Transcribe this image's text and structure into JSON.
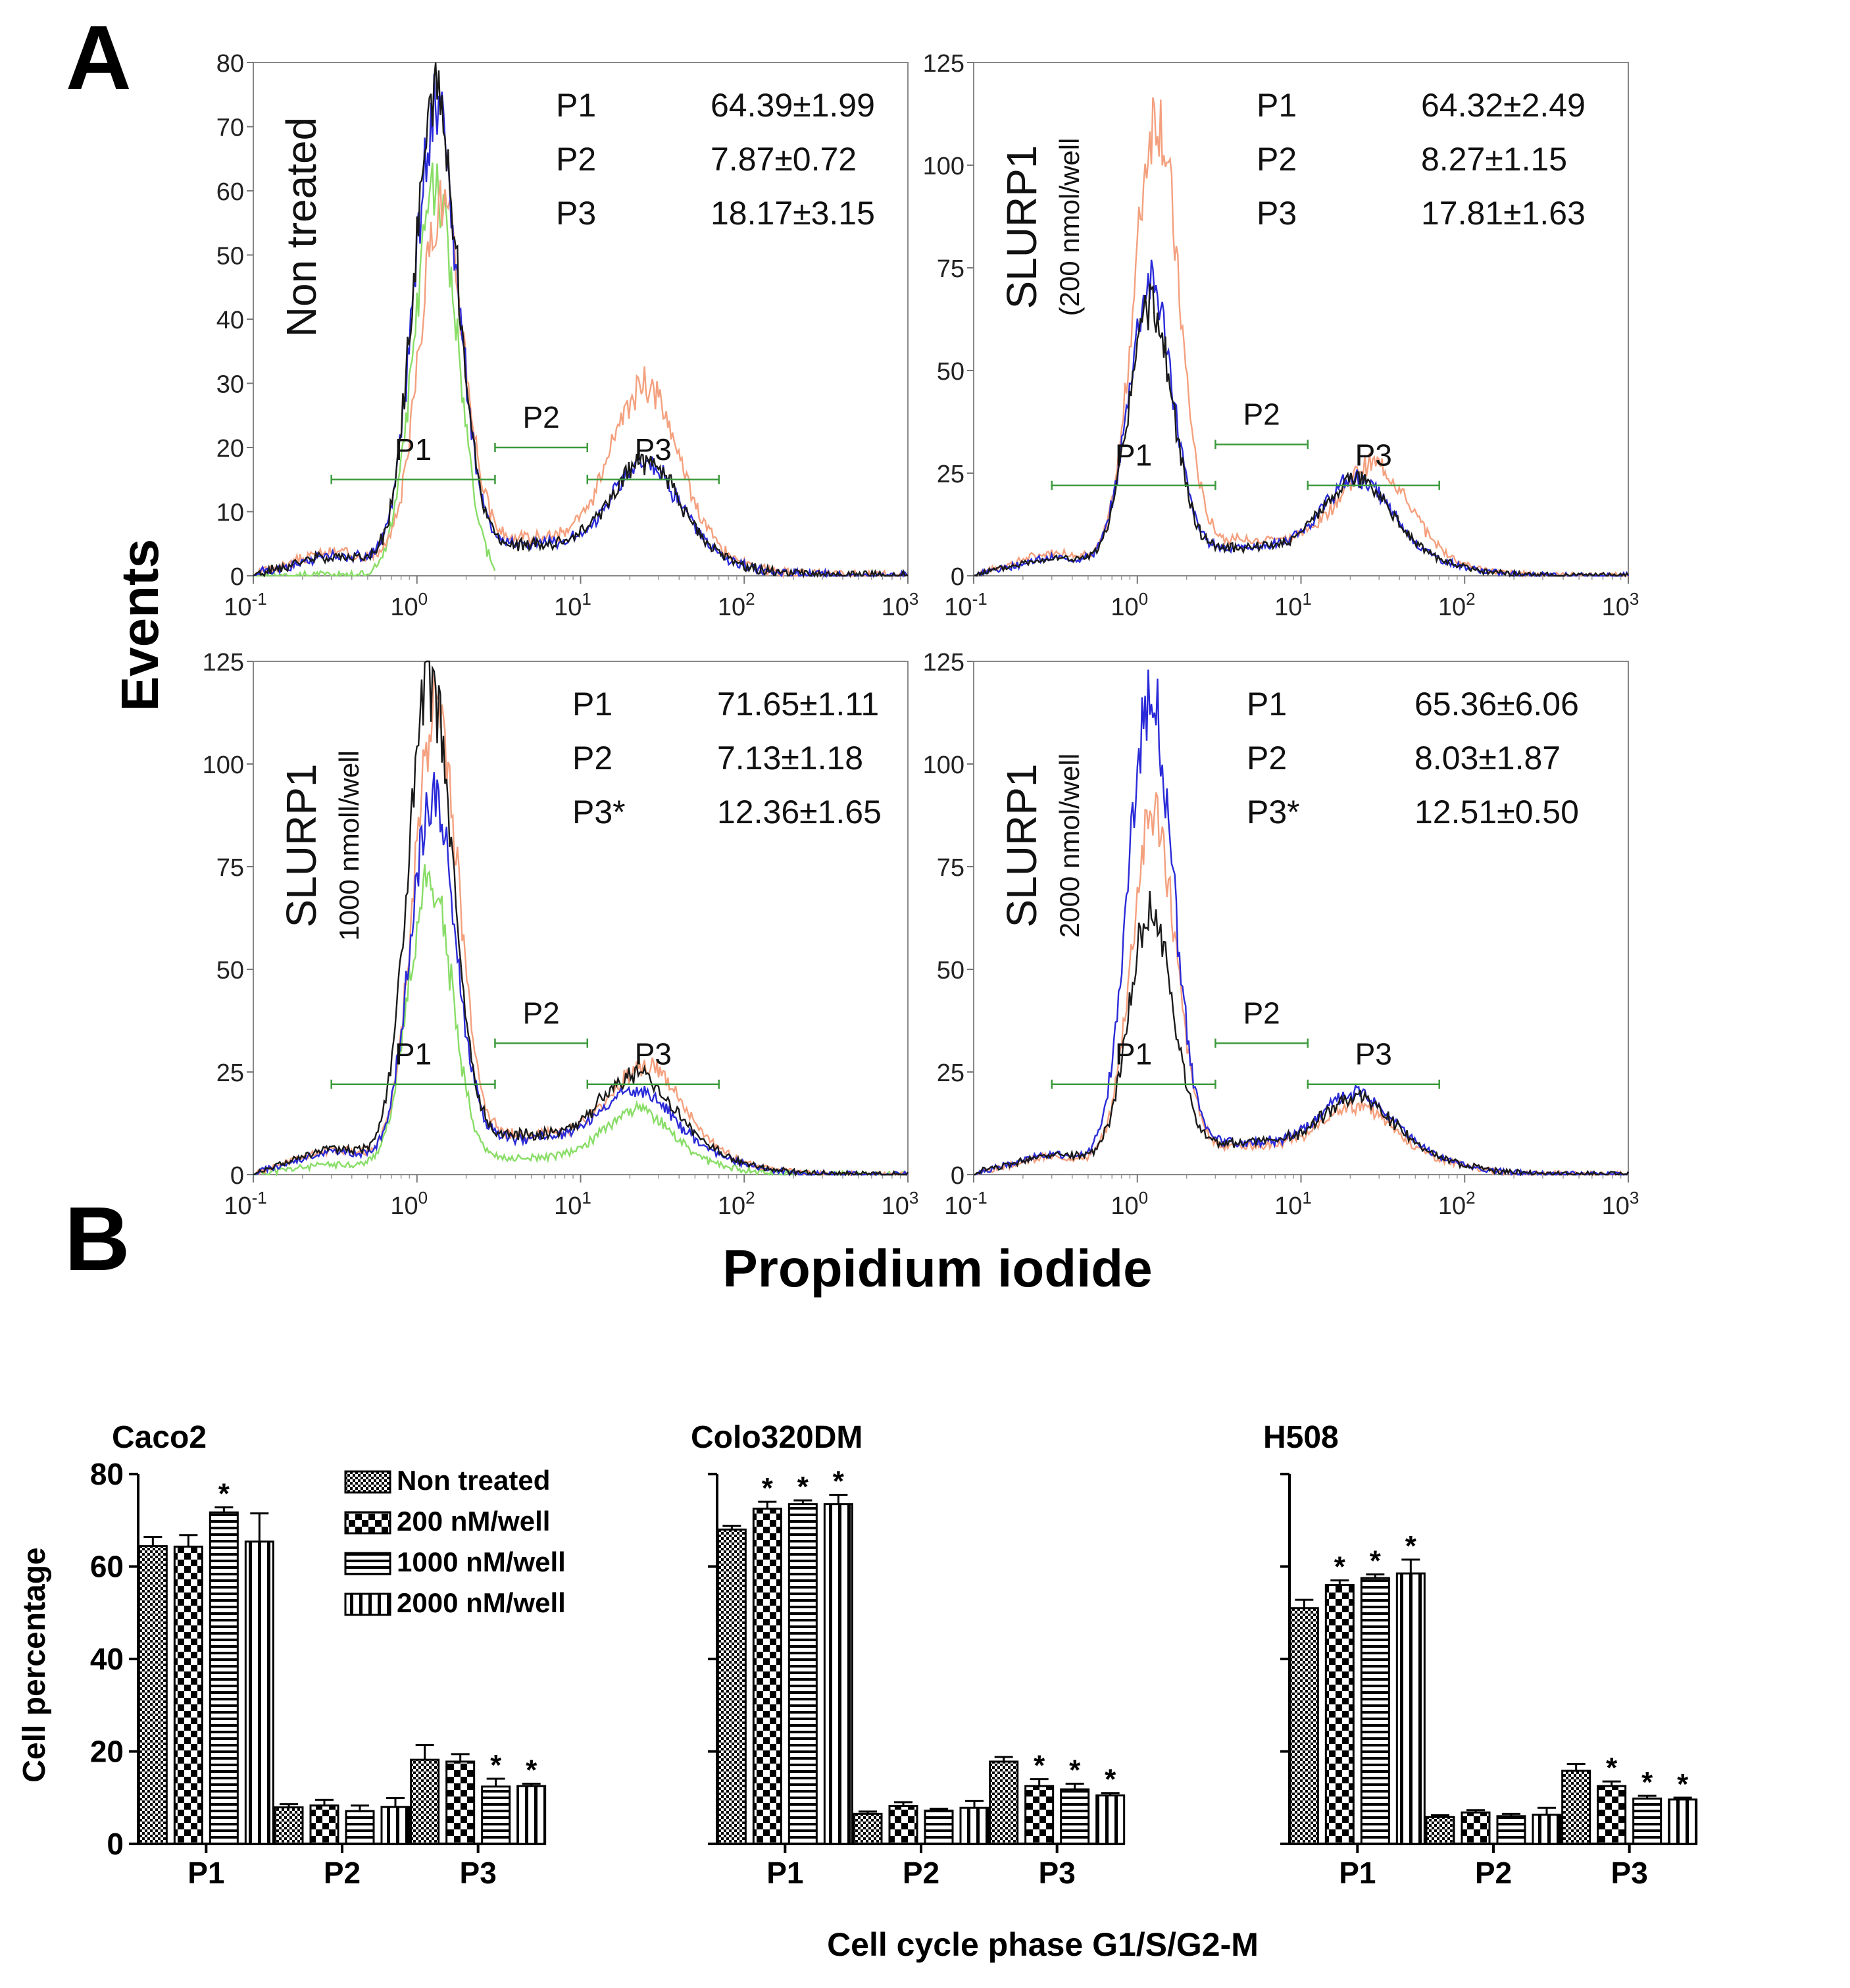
{
  "figure": {
    "panel_a_label": "A",
    "panel_b_label": "B",
    "events_label": "Events",
    "pi_label": "Propidium iodide",
    "b_xlabel": "Cell cycle phase G1/S/G2-M",
    "b_ylabel": "Cell percentage"
  },
  "colors": {
    "black": "#1a1a1a",
    "blue": "#2a2ad8",
    "salmon": "#f4a07e",
    "green": "#88dd66",
    "gate": "#3c9a3c"
  },
  "chart_data": [
    {
      "type": "line",
      "panel": "A",
      "title": "Non treated",
      "subtitle": "",
      "xlabel": "Propidium iodide",
      "ylabel": "Events",
      "xscale": "log",
      "xlim": [
        0.1,
        1000
      ],
      "ylim": [
        0,
        80
      ],
      "yticks": [
        0,
        10,
        20,
        30,
        40,
        50,
        60,
        70,
        80
      ],
      "ytick_labels": [
        "0",
        "10",
        "20",
        "30",
        "40",
        "50",
        "60",
        "70",
        "80"
      ],
      "xtick_labels": [
        {
          "base": "10",
          "exp": "-1"
        },
        {
          "base": "10",
          "exp": "0"
        },
        {
          "base": "10",
          "exp": "1"
        },
        {
          "base": "10",
          "exp": "2"
        },
        {
          "base": "10",
          "exp": "3"
        }
      ],
      "gates": [
        {
          "name": "P1",
          "range": [
            0.3,
            3.0
          ],
          "level": 15
        },
        {
          "name": "P2",
          "range": [
            3.0,
            11.0
          ],
          "level": 20
        },
        {
          "name": "P3",
          "range": [
            11.0,
            70.0
          ],
          "level": 15
        }
      ],
      "stats": [
        {
          "label": "P1",
          "value": "64.39±1.99"
        },
        {
          "label": "P2",
          "value": "7.87±0.72"
        },
        {
          "label": "P3",
          "value": "18.17±3.15"
        }
      ],
      "series": [
        {
          "name": "black",
          "peak": 72,
          "peak_x": 1.3,
          "s_level": 5,
          "g2": 13,
          "g2_x": 25,
          "seed": 1
        },
        {
          "name": "blue",
          "peak": 70,
          "peak_x": 1.3,
          "s_level": 5,
          "g2": 13,
          "g2_x": 25,
          "seed": 2
        },
        {
          "name": "salmon",
          "peak": 55,
          "peak_x": 1.4,
          "s_level": 6,
          "g2": 24,
          "g2_x": 25,
          "seed": 3
        },
        {
          "name": "green",
          "peak": 60,
          "peak_x": 1.3,
          "s_level": 0,
          "g2": 0,
          "g2_x": 25,
          "seed": 4,
          "cut": 3.0
        }
      ]
    },
    {
      "type": "line",
      "panel": "A",
      "title": "SLURP1",
      "subtitle": "(200 nmol/well",
      "xlabel": "Propidium iodide",
      "ylabel": "Events",
      "xscale": "log",
      "xlim": [
        0.1,
        1000
      ],
      "ylim": [
        0,
        125
      ],
      "yticks": [
        0,
        25,
        50,
        75,
        100,
        125
      ],
      "ytick_labels": [
        "0",
        "25",
        "50",
        "75",
        "100",
        "125"
      ],
      "xtick_labels": [
        {
          "base": "10",
          "exp": "-1"
        },
        {
          "base": "10",
          "exp": "0"
        },
        {
          "base": "10",
          "exp": "1"
        },
        {
          "base": "10",
          "exp": "2"
        },
        {
          "base": "10",
          "exp": "3"
        }
      ],
      "gates": [
        {
          "name": "P1",
          "range": [
            0.3,
            3.0
          ],
          "level": 22
        },
        {
          "name": "P2",
          "range": [
            3.0,
            11.0
          ],
          "level": 32
        },
        {
          "name": "P3",
          "range": [
            11.0,
            70.0
          ],
          "level": 22
        }
      ],
      "stats": [
        {
          "label": "P1",
          "value": "64.32±2.49"
        },
        {
          "label": "P2",
          "value": "8.27±1.15"
        },
        {
          "label": "P3",
          "value": "17.81±1.63"
        }
      ],
      "series": [
        {
          "name": "black",
          "peak": 62,
          "peak_x": 1.2,
          "s_level": 7,
          "g2": 17,
          "g2_x": 22,
          "seed": 5
        },
        {
          "name": "blue",
          "peak": 68,
          "peak_x": 1.2,
          "s_level": 7,
          "g2": 17,
          "g2_x": 22,
          "seed": 6
        },
        {
          "name": "salmon",
          "peak": 108,
          "peak_x": 1.3,
          "s_level": 9,
          "g2": 19,
          "g2_x": 28,
          "seed": 7
        }
      ]
    },
    {
      "type": "line",
      "panel": "A",
      "title": "SLURP1",
      "subtitle": "1000 nmoll/well",
      "xlabel": "Propidium iodide",
      "ylabel": "Events",
      "xscale": "log",
      "xlim": [
        0.1,
        1000
      ],
      "ylim": [
        0,
        125
      ],
      "yticks": [
        0,
        25,
        50,
        75,
        100,
        125
      ],
      "ytick_labels": [
        "0",
        "25",
        "50",
        "75",
        "100",
        "125"
      ],
      "xtick_labels": [
        {
          "base": "10",
          "exp": "-1"
        },
        {
          "base": "10",
          "exp": "0"
        },
        {
          "base": "10",
          "exp": "1"
        },
        {
          "base": "10",
          "exp": "2"
        },
        {
          "base": "10",
          "exp": "3"
        }
      ],
      "gates": [
        {
          "name": "P1",
          "range": [
            0.3,
            3.0
          ],
          "level": 22
        },
        {
          "name": "P2",
          "range": [
            3.0,
            11.0
          ],
          "level": 32
        },
        {
          "name": "P3",
          "range": [
            11.0,
            70.0
          ],
          "level": 22
        }
      ],
      "stats": [
        {
          "label": "P1",
          "value": "71.65±1.11"
        },
        {
          "label": "P2",
          "value": "7.13±1.18"
        },
        {
          "label": "P3*",
          "value": "12.36±1.65"
        }
      ],
      "series": [
        {
          "name": "black",
          "peak": 115,
          "peak_x": 1.2,
          "s_level": 10,
          "g2": 15,
          "g2_x": 22,
          "seed": 8
        },
        {
          "name": "blue",
          "peak": 88,
          "peak_x": 1.25,
          "s_level": 9,
          "g2": 12,
          "g2_x": 22,
          "seed": 9
        },
        {
          "name": "salmon",
          "peak": 108,
          "peak_x": 1.3,
          "s_level": 10,
          "g2": 17,
          "g2_x": 25,
          "seed": 10
        },
        {
          "name": "green",
          "peak": 70,
          "peak_x": 1.2,
          "s_level": 4,
          "g2": 12,
          "g2_x": 22,
          "seed": 11
        }
      ]
    },
    {
      "type": "line",
      "panel": "A",
      "title": "SLURP1",
      "subtitle": "2000 nmol/well",
      "xlabel": "Propidium iodide",
      "ylabel": "Events",
      "xscale": "log",
      "xlim": [
        0.1,
        1000
      ],
      "ylim": [
        0,
        125
      ],
      "yticks": [
        0,
        25,
        50,
        75,
        100,
        125
      ],
      "ytick_labels": [
        "0",
        "25",
        "50",
        "75",
        "100",
        "125"
      ],
      "xtick_labels": [
        {
          "base": "10",
          "exp": "-1"
        },
        {
          "base": "10",
          "exp": "0"
        },
        {
          "base": "10",
          "exp": "1"
        },
        {
          "base": "10",
          "exp": "2"
        },
        {
          "base": "10",
          "exp": "3"
        }
      ],
      "gates": [
        {
          "name": "P1",
          "range": [
            0.3,
            3.0
          ],
          "level": 22
        },
        {
          "name": "P2",
          "range": [
            3.0,
            11.0
          ],
          "level": 32
        },
        {
          "name": "P3",
          "range": [
            11.0,
            70.0
          ],
          "level": 22
        }
      ],
      "stats": [
        {
          "label": "P1",
          "value": "65.36±6.06"
        },
        {
          "label": "P2",
          "value": "8.03±1.87"
        },
        {
          "label": "P3*",
          "value": "12.51±0.50"
        }
      ],
      "series": [
        {
          "name": "black",
          "peak": 60,
          "peak_x": 1.2,
          "s_level": 8,
          "g2": 11,
          "g2_x": 22,
          "seed": 12
        },
        {
          "name": "blue",
          "peak": 113,
          "peak_x": 1.2,
          "s_level": 8,
          "g2": 12,
          "g2_x": 22,
          "seed": 13
        },
        {
          "name": "salmon",
          "peak": 85,
          "peak_x": 1.25,
          "s_level": 7,
          "g2": 10,
          "g2_x": 22,
          "seed": 14
        }
      ]
    },
    {
      "type": "bar",
      "panel": "B",
      "title": "Caco2",
      "categories": [
        "P1",
        "P2",
        "P3"
      ],
      "ylim": [
        0,
        80
      ],
      "yticks": [
        0,
        20,
        40,
        60,
        80
      ],
      "ytick_labels": [
        "0",
        "20",
        "40",
        "60",
        "80"
      ],
      "show_ytick_labels": true,
      "xlabel": "",
      "ylabel": "Cell percentage",
      "legend": [
        "Non treated",
        "200 nM/well",
        "1000 nM/well",
        "2000 nM/well"
      ],
      "series": [
        {
          "name": "Non treated",
          "pattern": "dense",
          "values": [
            64.4,
            7.9,
            18.2
          ],
          "errors": [
            2.0,
            0.7,
            3.2
          ],
          "sig": [
            false,
            false,
            false
          ]
        },
        {
          "name": "200 nM/well",
          "pattern": "checker",
          "values": [
            64.3,
            8.3,
            17.8
          ],
          "errors": [
            2.5,
            1.2,
            1.6
          ],
          "sig": [
            false,
            false,
            false
          ]
        },
        {
          "name": "1000 nM/well",
          "pattern": "hlines",
          "values": [
            71.7,
            7.1,
            12.4
          ],
          "errors": [
            1.1,
            1.2,
            1.7
          ],
          "sig": [
            true,
            false,
            true
          ]
        },
        {
          "name": "2000 nM/well",
          "pattern": "vlines",
          "values": [
            65.4,
            8.0,
            12.5
          ],
          "errors": [
            6.1,
            1.9,
            0.5
          ],
          "sig": [
            false,
            false,
            true
          ]
        }
      ]
    },
    {
      "type": "bar",
      "panel": "B",
      "title": "Colo320DM",
      "categories": [
        "P1",
        "P2",
        "P3"
      ],
      "ylim": [
        0,
        80
      ],
      "yticks": [
        0,
        20,
        40,
        60,
        80
      ],
      "ytick_labels": [
        "0",
        "20",
        "40",
        "60",
        "80"
      ],
      "show_ytick_labels": false,
      "xlabel": "Cell cycle phase G1/S/G2-M",
      "ylabel": "",
      "series": [
        {
          "name": "Non treated",
          "pattern": "dense",
          "values": [
            68,
            6.5,
            17.8
          ],
          "errors": [
            0.8,
            0.5,
            1.0
          ],
          "sig": [
            false,
            false,
            false
          ]
        },
        {
          "name": "200 nM/well",
          "pattern": "checker",
          "values": [
            72.5,
            8.2,
            12.5
          ],
          "errors": [
            1.5,
            0.8,
            1.5
          ],
          "sig": [
            true,
            false,
            true
          ]
        },
        {
          "name": "1000 nM/well",
          "pattern": "hlines",
          "values": [
            73.5,
            7.2,
            11.8
          ],
          "errors": [
            0.8,
            0.4,
            1.2
          ],
          "sig": [
            true,
            false,
            true
          ]
        },
        {
          "name": "2000 nM/well",
          "pattern": "vlines",
          "values": [
            73.5,
            7.8,
            10.5
          ],
          "errors": [
            2.0,
            1.5,
            0.5
          ],
          "sig": [
            true,
            false,
            true
          ]
        }
      ]
    },
    {
      "type": "bar",
      "panel": "B",
      "title": "H508",
      "categories": [
        "P1",
        "P2",
        "P3"
      ],
      "ylim": [
        0,
        80
      ],
      "yticks": [
        0,
        20,
        40,
        60,
        80
      ],
      "ytick_labels": [
        "0",
        "20",
        "40",
        "60",
        "80"
      ],
      "show_ytick_labels": false,
      "xlabel": "",
      "ylabel": "",
      "series": [
        {
          "name": "Non treated",
          "pattern": "dense",
          "values": [
            51,
            5.8,
            15.8
          ],
          "errors": [
            1.8,
            0.4,
            1.5
          ],
          "sig": [
            false,
            false,
            false
          ]
        },
        {
          "name": "200 nM/well",
          "pattern": "checker",
          "values": [
            56,
            6.8,
            12.5
          ],
          "errors": [
            1.0,
            0.5,
            1.0
          ],
          "sig": [
            true,
            false,
            true
          ]
        },
        {
          "name": "1000 nM/well",
          "pattern": "hlines",
          "values": [
            57.5,
            6.0,
            9.8
          ],
          "errors": [
            0.8,
            0.5,
            0.6
          ],
          "sig": [
            true,
            false,
            true
          ]
        },
        {
          "name": "2000 nM/well",
          "pattern": "vlines",
          "values": [
            58.5,
            6.3,
            9.6
          ],
          "errors": [
            3.0,
            1.5,
            0.4
          ],
          "sig": [
            true,
            false,
            true
          ]
        }
      ]
    }
  ]
}
